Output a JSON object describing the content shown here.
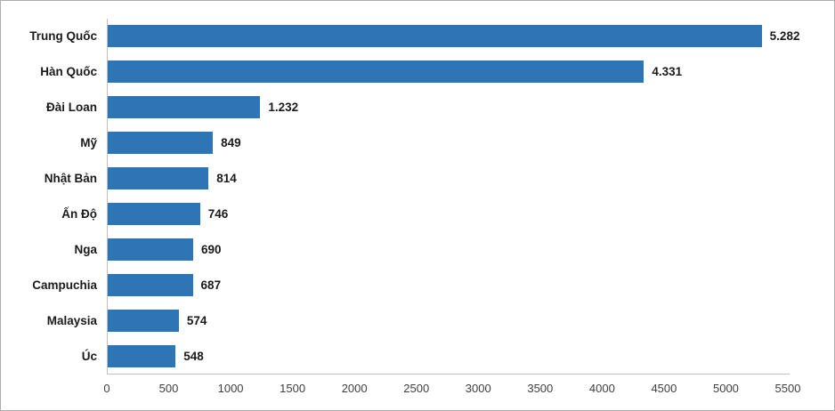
{
  "chart_data": {
    "type": "bar",
    "orientation": "horizontal",
    "title": "",
    "xlabel": "",
    "ylabel": "",
    "categories": [
      "Trung Quốc",
      "Hàn Quốc",
      "Đài Loan",
      "Mỹ",
      "Nhật Bản",
      "Ấn Độ",
      "Nga",
      "Campuchia",
      "Malaysia",
      "Úc"
    ],
    "values": [
      5282,
      4331,
      1232,
      849,
      814,
      746,
      690,
      687,
      574,
      548
    ],
    "value_labels": [
      "5.282",
      "4.331",
      "1.232",
      "849",
      "814",
      "746",
      "690",
      "687",
      "574",
      "548"
    ],
    "xlim": [
      0,
      5500
    ],
    "x_tick_values": [
      0,
      500,
      1000,
      1500,
      2000,
      2500,
      3000,
      3500,
      4000,
      4500,
      5000,
      5500
    ],
    "x_tick_labels": [
      "0",
      "500",
      "1000",
      "1500",
      "2000",
      "2500",
      "3000",
      "3500",
      "4000",
      "4500",
      "5000",
      "5500"
    ],
    "grid": false,
    "legend": false
  },
  "colors": {
    "bar": "#2e75b6",
    "axis_line": "#bfbfbf",
    "category_text": "#1a1a1a",
    "value_text": "#1a1a1a",
    "tick_text": "#3f3f3f",
    "frame_border": "#aeaeae",
    "background": "#ffffff"
  }
}
